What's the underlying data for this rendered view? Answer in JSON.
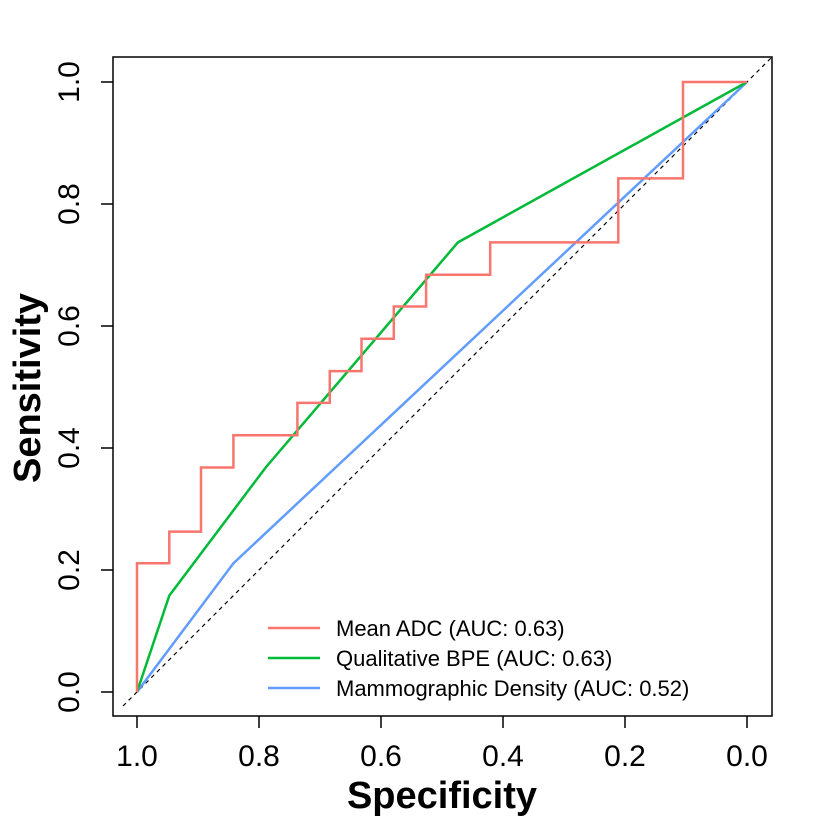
{
  "chart_data": {
    "type": "line",
    "title": "",
    "xlabel": "Specificity",
    "ylabel": "Sensitivity",
    "xlim": [
      1.0,
      0.0
    ],
    "ylim": [
      0.0,
      1.0
    ],
    "x_ticks": [
      "1.0",
      "0.8",
      "0.6",
      "0.4",
      "0.2",
      "0.0"
    ],
    "y_ticks": [
      "0.0",
      "0.2",
      "0.4",
      "0.6",
      "0.8",
      "1.0"
    ],
    "grid": false,
    "legend_position": "bottom-right",
    "reference_line": {
      "name": "chance",
      "style": "dashed",
      "color": "#000000"
    },
    "series": [
      {
        "name": "Mean ADC (AUC: 0.63)",
        "color": "#F8766D",
        "points": [
          [
            1.0,
            0.0
          ],
          [
            1.0,
            0.211
          ],
          [
            0.947,
            0.211
          ],
          [
            0.947,
            0.263
          ],
          [
            0.895,
            0.263
          ],
          [
            0.895,
            0.368
          ],
          [
            0.842,
            0.368
          ],
          [
            0.842,
            0.421
          ],
          [
            0.737,
            0.421
          ],
          [
            0.737,
            0.474
          ],
          [
            0.684,
            0.474
          ],
          [
            0.684,
            0.526
          ],
          [
            0.632,
            0.526
          ],
          [
            0.632,
            0.579
          ],
          [
            0.579,
            0.579
          ],
          [
            0.579,
            0.632
          ],
          [
            0.526,
            0.632
          ],
          [
            0.526,
            0.684
          ],
          [
            0.421,
            0.684
          ],
          [
            0.421,
            0.737
          ],
          [
            0.211,
            0.737
          ],
          [
            0.211,
            0.842
          ],
          [
            0.105,
            0.842
          ],
          [
            0.105,
            1.0
          ],
          [
            0.0,
            1.0
          ]
        ]
      },
      {
        "name": "Qualitative BPE (AUC: 0.63)",
        "color": "#00BA38",
        "points": [
          [
            1.0,
            0.0
          ],
          [
            0.947,
            0.158
          ],
          [
            0.789,
            0.368
          ],
          [
            0.474,
            0.737
          ],
          [
            0.0,
            1.0
          ]
        ]
      },
      {
        "name": "Mammographic Density (AUC: 0.52)",
        "color": "#619CFF",
        "points": [
          [
            1.0,
            0.0
          ],
          [
            0.842,
            0.211
          ],
          [
            0.0,
            1.0
          ]
        ]
      }
    ]
  }
}
